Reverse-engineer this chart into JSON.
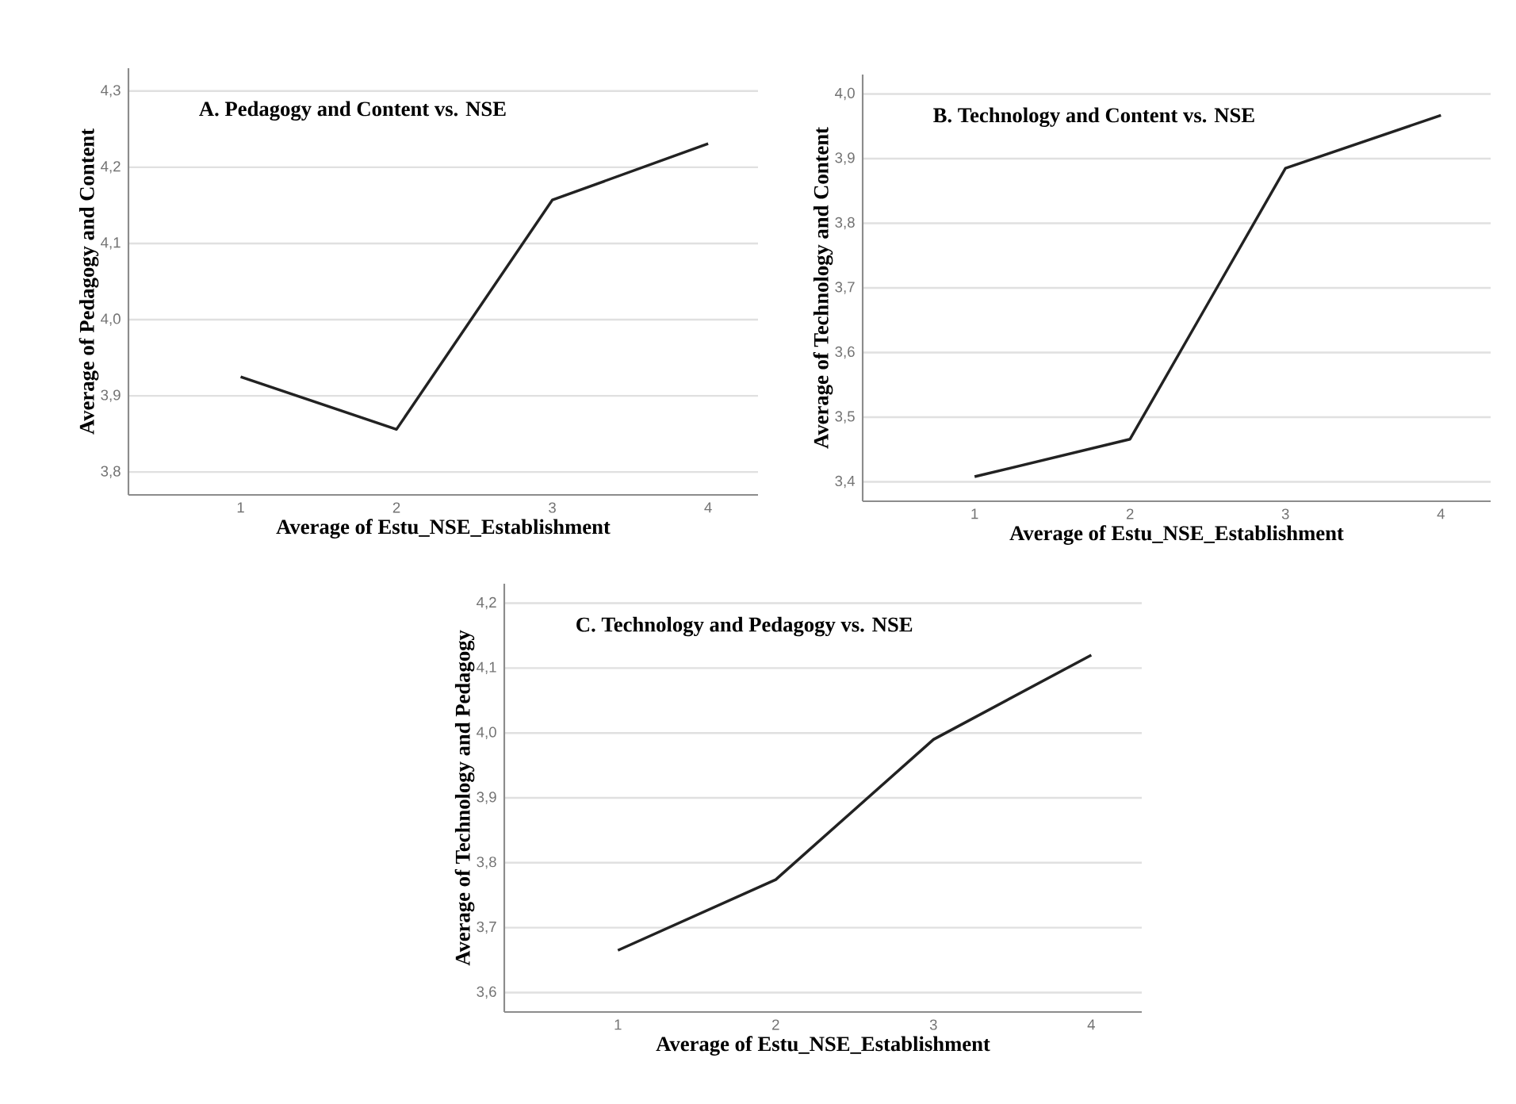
{
  "chart_data": [
    {
      "type": "line",
      "title": "A. Pedagogy and Content vs. NSE",
      "xlabel": "Average of Estu_NSE_Establishment",
      "ylabel": "Average of Pedagogy and Content",
      "categories": [
        "1",
        "2",
        "3",
        "4"
      ],
      "values": [
        3.925,
        3.856,
        4.157,
        4.231
      ],
      "color": "#222222",
      "ylim": [
        3.77,
        4.33
      ],
      "yticks": [
        {
          "value": 3.8,
          "label": "3,8"
        },
        {
          "value": 3.9,
          "label": "3,9"
        },
        {
          "value": 4.0,
          "label": "4,0"
        },
        {
          "value": 4.1,
          "label": "4,1"
        },
        {
          "value": 4.2,
          "label": "4,2"
        },
        {
          "value": 4.3,
          "label": "4,3"
        }
      ],
      "grid": "y"
    },
    {
      "type": "line",
      "title": "B. Technology and Content vs. NSE",
      "xlabel": "Average of Estu_NSE_Establishment",
      "ylabel": "Average of Technology and Content",
      "categories": [
        "1",
        "2",
        "3",
        "4"
      ],
      "values": [
        3.408,
        3.466,
        3.885,
        3.967
      ],
      "color": "#222222",
      "ylim": [
        3.37,
        4.03
      ],
      "yticks": [
        {
          "value": 3.4,
          "label": "3,4"
        },
        {
          "value": 3.5,
          "label": "3,5"
        },
        {
          "value": 3.6,
          "label": "3,6"
        },
        {
          "value": 3.7,
          "label": "3,7"
        },
        {
          "value": 3.8,
          "label": "3,8"
        },
        {
          "value": 3.9,
          "label": "3,9"
        },
        {
          "value": 4.0,
          "label": "4,0"
        }
      ],
      "grid": "y"
    },
    {
      "type": "line",
      "title": "C. Technology and Pedagogy vs. NSE",
      "xlabel": "Average of Estu_NSE_Establishment",
      "ylabel": "Average of Technology and Pedagogy",
      "categories": [
        "1",
        "2",
        "3",
        "4"
      ],
      "values": [
        3.665,
        3.774,
        3.99,
        4.12
      ],
      "color": "#222222",
      "ylim": [
        3.57,
        4.23
      ],
      "yticks": [
        {
          "value": 3.6,
          "label": "3,6"
        },
        {
          "value": 3.7,
          "label": "3,7"
        },
        {
          "value": 3.8,
          "label": "3,8"
        },
        {
          "value": 3.9,
          "label": "3,9"
        },
        {
          "value": 4.0,
          "label": "4,0"
        },
        {
          "value": 4.1,
          "label": "4,1"
        },
        {
          "value": 4.2,
          "label": "4,2"
        }
      ],
      "grid": "y"
    }
  ]
}
